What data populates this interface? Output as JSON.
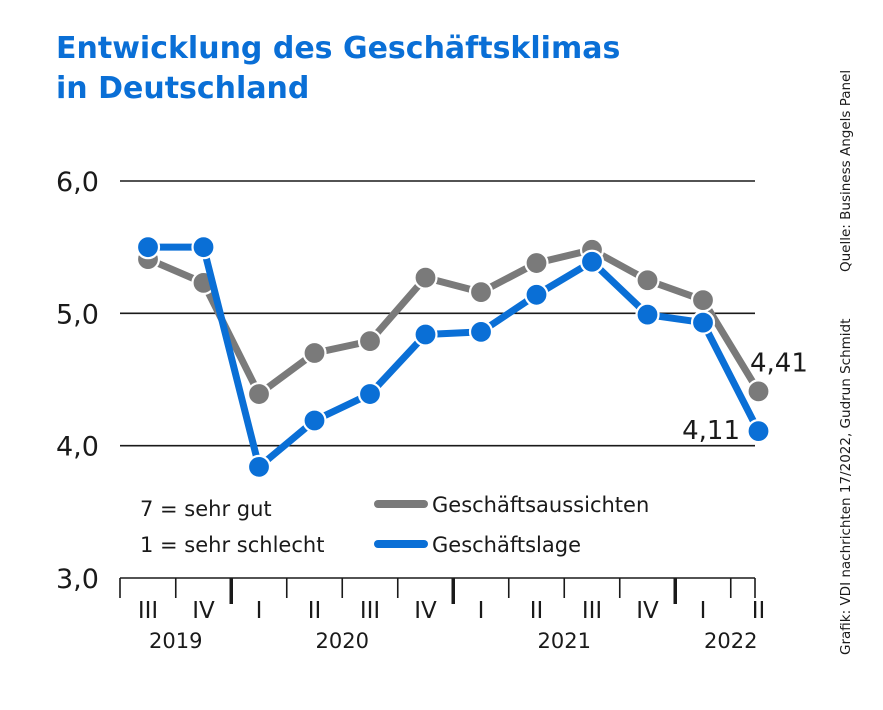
{
  "title_line1": "Entwicklung des Geschäftsklimas",
  "title_line2": "in Deutschland",
  "source": "Quelle: Business Angels Panel",
  "credit": "Grafik: VDI nachrichten 17/2022, Gudrun Schmidt",
  "note_line1": "7 = sehr gut",
  "note_line2": "1 = sehr schlecht",
  "colors": {
    "aussichten": "#7a7a7a",
    "lage": "#0a6fd6",
    "title": "#0a6fd6"
  },
  "chart_data": {
    "type": "line",
    "categories": [
      "III",
      "IV",
      "I",
      "II",
      "III",
      "IV",
      "I",
      "II",
      "III",
      "IV",
      "I",
      "II"
    ],
    "years": [
      {
        "label": "2019",
        "from": 0,
        "to": 1
      },
      {
        "label": "2020",
        "from": 2,
        "to": 5
      },
      {
        "label": "2021",
        "from": 6,
        "to": 9
      },
      {
        "label": "2022",
        "from": 10,
        "to": 11
      }
    ],
    "ylim": [
      3.0,
      6.0
    ],
    "yticks": [
      "3,0",
      "4,0",
      "5,0",
      "6,0"
    ],
    "ytick_values": [
      3.0,
      4.0,
      5.0,
      6.0
    ],
    "grid": true,
    "legend_position": "bottom-center",
    "series": [
      {
        "name": "Geschäftsaussichten",
        "color_key": "aussichten",
        "values": [
          5.41,
          5.23,
          4.39,
          4.7,
          4.79,
          5.27,
          5.16,
          5.38,
          5.48,
          5.25,
          5.1,
          4.41
        ],
        "end_label": "4,41"
      },
      {
        "name": "Geschäftslage",
        "color_key": "lage",
        "values": [
          5.5,
          5.5,
          3.84,
          4.19,
          4.39,
          4.84,
          4.86,
          5.14,
          5.39,
          4.99,
          4.93,
          4.11
        ],
        "end_label": "4,11"
      }
    ]
  }
}
